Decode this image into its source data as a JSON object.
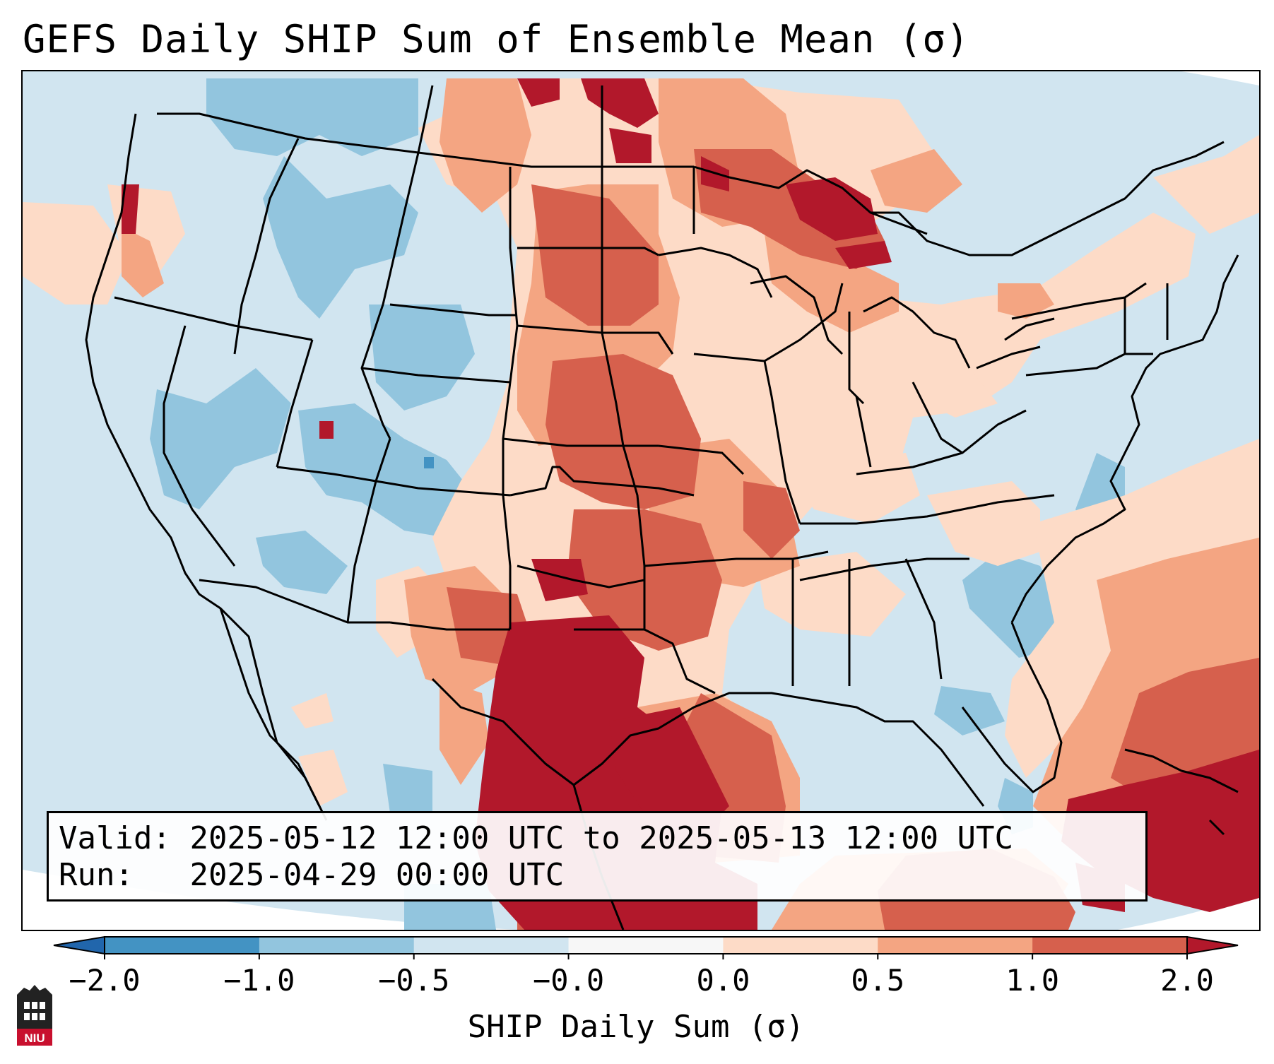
{
  "title": "GEFS Daily SHIP Sum of Ensemble Mean (σ)",
  "info": {
    "valid_label": "Valid:",
    "valid_value": "2025-05-12 12:00 UTC to 2025-05-13 12:00 UTC",
    "run_label": "Run:",
    "run_value": "2025-04-29 00:00 UTC"
  },
  "colorbar": {
    "label": "SHIP Daily Sum (σ)",
    "ticks": [
      "−2.0",
      "−1.0",
      "−0.5",
      "−0.0",
      "0.0",
      "0.5",
      "1.0",
      "2.0"
    ],
    "colors": [
      "#4393c3",
      "#92c5de",
      "#d1e5f0",
      "#f7f7f7",
      "#fddbc7",
      "#f4a582",
      "#d6604d",
      "#b2182b"
    ],
    "extend": "both"
  },
  "logo": {
    "text": "NIU"
  },
  "map_style": {
    "ocean_color": "#d1e5f0",
    "border_color": "#000000"
  }
}
